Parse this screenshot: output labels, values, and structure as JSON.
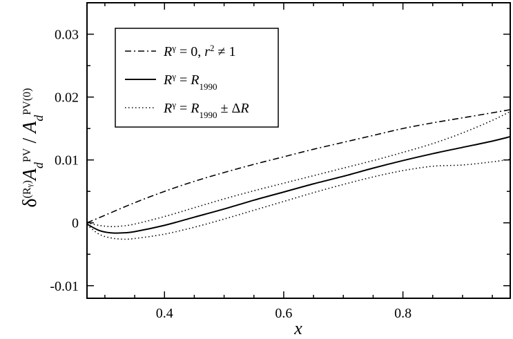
{
  "chart_data": {
    "type": "line",
    "title": "",
    "xlabel": "x",
    "ylabel_parts": {
      "delta": "δ",
      "sup": "(R",
      "supsup": "γ",
      "close": ")",
      "A": "A",
      "sub_d": "d",
      "sup_pv": "PV",
      "slash": " / ",
      "A2": "A",
      "sub_d2": "d",
      "sup_pv0": "PV(0)"
    },
    "xlim": [
      0.27,
      0.98
    ],
    "ylim": [
      -0.012,
      0.035
    ],
    "xticks": [
      0.4,
      0.6,
      0.8
    ],
    "xtick_labels": [
      "0.4",
      "0.6",
      "0.8"
    ],
    "yticks": [
      -0.01,
      0,
      0.01,
      0.02,
      0.03
    ],
    "ytick_labels": [
      "-0.01",
      "0",
      "0.01",
      "0.02",
      "0.03"
    ],
    "grid": false,
    "legend_position": "top-left",
    "series": [
      {
        "name": "R^γ = 0, r^2 ≠ 1",
        "legend": {
          "main": "R",
          "sup": "γ",
          "rest1": " = 0, ",
          "r": "r",
          "rsup": "2",
          "rest2": " ≠ 1"
        },
        "style": "dashdot",
        "x": [
          0.27,
          0.3,
          0.35,
          0.4,
          0.45,
          0.5,
          0.55,
          0.6,
          0.65,
          0.7,
          0.75,
          0.8,
          0.85,
          0.9,
          0.95,
          0.98
        ],
        "y": [
          0.0,
          0.0012,
          0.0032,
          0.005,
          0.0066,
          0.008,
          0.0093,
          0.0105,
          0.0117,
          0.0128,
          0.0139,
          0.015,
          0.0159,
          0.0167,
          0.0175,
          0.018
        ]
      },
      {
        "name": "R^γ = R_1990",
        "legend": {
          "main": "R",
          "sup": "γ",
          "rest1": " = ",
          "R2": "R",
          "sub": "1990"
        },
        "style": "solid",
        "x": [
          0.27,
          0.29,
          0.31,
          0.33,
          0.35,
          0.4,
          0.45,
          0.5,
          0.55,
          0.6,
          0.65,
          0.7,
          0.75,
          0.8,
          0.85,
          0.9,
          0.95,
          0.98
        ],
        "y": [
          -0.0002,
          -0.0012,
          -0.0016,
          -0.0016,
          -0.0014,
          -0.0004,
          0.0009,
          0.0022,
          0.0036,
          0.0049,
          0.0062,
          0.0074,
          0.0087,
          0.0099,
          0.011,
          0.012,
          0.013,
          0.0137
        ]
      },
      {
        "name": "R^γ = R_1990 ± ΔR (upper)",
        "legend": {
          "main": "R",
          "sup": "γ",
          "rest1": " = ",
          "R2": "R",
          "sub": "1990",
          "rest2": " ± Δ",
          "R3": "R"
        },
        "style": "dotted",
        "x": [
          0.27,
          0.29,
          0.31,
          0.33,
          0.35,
          0.4,
          0.45,
          0.5,
          0.55,
          0.6,
          0.65,
          0.7,
          0.75,
          0.8,
          0.85,
          0.9,
          0.95,
          0.98
        ],
        "y": [
          0.0,
          -0.0004,
          -0.0006,
          -0.0005,
          -0.0002,
          0.001,
          0.0024,
          0.0038,
          0.0051,
          0.0063,
          0.0075,
          0.0087,
          0.0099,
          0.0112,
          0.0126,
          0.0143,
          0.0163,
          0.0177
        ]
      },
      {
        "name": "R^γ = R_1990 ± ΔR (lower)",
        "style": "dotted",
        "x": [
          0.27,
          0.29,
          0.31,
          0.33,
          0.35,
          0.4,
          0.45,
          0.5,
          0.55,
          0.6,
          0.65,
          0.7,
          0.75,
          0.8,
          0.85,
          0.9,
          0.95,
          0.98
        ],
        "y": [
          -0.0003,
          -0.0018,
          -0.0024,
          -0.0026,
          -0.0025,
          -0.0018,
          -0.0007,
          0.0006,
          0.002,
          0.0034,
          0.0048,
          0.0061,
          0.0073,
          0.0083,
          0.009,
          0.0092,
          0.0097,
          0.0101
        ]
      }
    ]
  }
}
